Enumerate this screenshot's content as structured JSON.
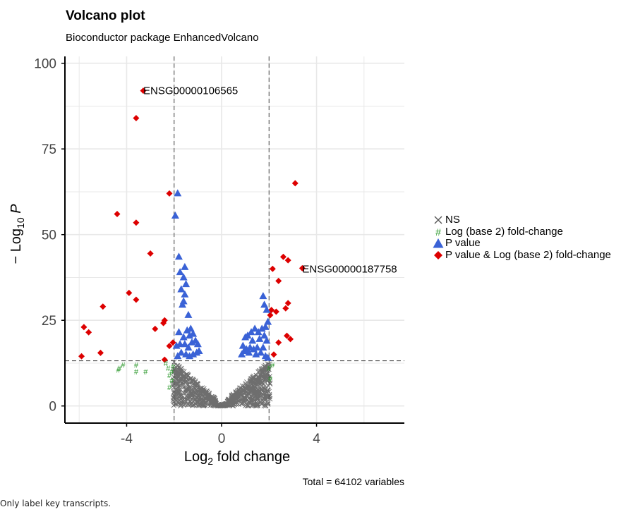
{
  "title": "Volcano plot",
  "subtitle": "Bioconductor package EnhancedVolcano",
  "caption": "Only label key transcripts.",
  "colors": {
    "ns": "#555555",
    "log2fc": "#2e9a2e",
    "pvalue": "#3a62d6",
    "both": "#dd0000",
    "grid": "#e8e8e8",
    "cutoff_line": "#555555"
  },
  "chart_data": {
    "type": "scatter",
    "xlabel_main": "Log",
    "xlabel_sub": "2",
    "xlabel_rest": " fold change",
    "ylabel_prefix": "− Log",
    "ylabel_sub": "10",
    "ylabel_suffix": " P",
    "xlim": [
      -6.6,
      7.7
    ],
    "ylim": [
      -5,
      102
    ],
    "x_ticks": [
      -4,
      0,
      4
    ],
    "x_tick_labels": [
      "-4",
      "0",
      "4"
    ],
    "y_ticks": [
      0,
      25,
      50,
      75,
      100
    ],
    "y_tick_labels": [
      "0",
      "25",
      "50",
      "75",
      "100"
    ],
    "grid": true,
    "fc_cutoffs": [
      -2,
      2
    ],
    "p_cutoff": 13.2,
    "legend_position": "right",
    "legend": [
      "NS",
      "Log (base 2) fold-change",
      "P value",
      "P value & Log (base 2) fold-change"
    ],
    "total_label": "Total = 64102 variables",
    "annotations": [
      {
        "text": "ENSG00000106565",
        "x": -3.3,
        "y": 92
      },
      {
        "text": "ENSG00000187758",
        "x": 3.4,
        "y": 40
      }
    ],
    "series": [
      {
        "name": "P value & Log (base 2) fold-change",
        "marker": "diamond",
        "points": [
          [
            -3.3,
            92
          ],
          [
            -3.6,
            84
          ],
          [
            -2.2,
            62
          ],
          [
            -4.4,
            56
          ],
          [
            -3.6,
            53.5
          ],
          [
            -3.0,
            44.5
          ],
          [
            -3.9,
            33
          ],
          [
            -3.6,
            31
          ],
          [
            -5.0,
            29
          ],
          [
            -2.4,
            25
          ],
          [
            -2.45,
            24.2
          ],
          [
            -5.8,
            23
          ],
          [
            -5.6,
            21.5
          ],
          [
            -2.8,
            22.5
          ],
          [
            -2.2,
            17.5
          ],
          [
            -2.05,
            18.5
          ],
          [
            -5.1,
            15.5
          ],
          [
            -5.9,
            14.5
          ],
          [
            -2.4,
            13.5
          ],
          [
            3.1,
            65
          ],
          [
            2.6,
            43.5
          ],
          [
            2.8,
            42.5
          ],
          [
            2.15,
            40
          ],
          [
            3.4,
            40.2
          ],
          [
            2.4,
            36.5
          ],
          [
            2.8,
            30
          ],
          [
            2.7,
            28.5
          ],
          [
            2.1,
            28
          ],
          [
            2.3,
            27.5
          ],
          [
            2.05,
            26.5
          ],
          [
            2.75,
            20.5
          ],
          [
            2.9,
            19.5
          ],
          [
            2.4,
            18.5
          ],
          [
            2.2,
            15
          ]
        ]
      },
      {
        "name": "P value",
        "marker": "triangle",
        "points": [
          [
            -1.85,
            62
          ],
          [
            -1.95,
            55.5
          ],
          [
            -1.8,
            43.5
          ],
          [
            -1.75,
            39
          ],
          [
            -1.55,
            40.5
          ],
          [
            -1.6,
            37.5
          ],
          [
            -1.5,
            35.5
          ],
          [
            -1.7,
            34
          ],
          [
            -1.6,
            30.5
          ],
          [
            -1.55,
            32.5
          ],
          [
            -1.65,
            29.5
          ],
          [
            -1.4,
            26.5
          ],
          [
            -1.3,
            22.5
          ],
          [
            -1.45,
            22
          ],
          [
            -1.2,
            21
          ],
          [
            -1.35,
            20.5
          ],
          [
            -1.6,
            20
          ],
          [
            -1.8,
            21.5
          ],
          [
            -1.75,
            18
          ],
          [
            -1.9,
            17.5
          ],
          [
            -1.55,
            18
          ],
          [
            -1.4,
            17
          ],
          [
            -1.25,
            18.5
          ],
          [
            -1.1,
            19
          ],
          [
            -1.0,
            18
          ],
          [
            -0.95,
            16
          ],
          [
            -1.05,
            15.5
          ],
          [
            -1.2,
            15
          ],
          [
            -1.35,
            14.5
          ],
          [
            -1.5,
            15
          ],
          [
            -1.7,
            15.5
          ],
          [
            -1.85,
            14.5
          ],
          [
            1.75,
            32
          ],
          [
            1.8,
            29.5
          ],
          [
            1.9,
            28
          ],
          [
            1.95,
            24.5
          ],
          [
            1.85,
            23
          ],
          [
            1.7,
            22.5
          ],
          [
            1.55,
            21.5
          ],
          [
            1.4,
            22.5
          ],
          [
            1.25,
            21.5
          ],
          [
            1.1,
            20.5
          ],
          [
            1.0,
            20
          ],
          [
            1.3,
            19
          ],
          [
            1.6,
            19.5
          ],
          [
            1.8,
            20.5
          ],
          [
            1.9,
            19
          ],
          [
            1.75,
            17
          ],
          [
            1.5,
            17
          ],
          [
            1.35,
            16.5
          ],
          [
            1.2,
            17
          ],
          [
            1.05,
            16.5
          ],
          [
            0.9,
            17.5
          ],
          [
            0.95,
            16
          ],
          [
            0.85,
            15
          ],
          [
            1.15,
            15.5
          ],
          [
            1.45,
            15
          ],
          [
            1.65,
            15.5
          ],
          [
            1.85,
            14.5
          ],
          [
            1.95,
            14
          ]
        ]
      },
      {
        "name": "Log (base 2) fold-change",
        "marker": "hash",
        "points": [
          [
            -4.35,
            10.5
          ],
          [
            -4.3,
            11
          ],
          [
            -4.15,
            12
          ],
          [
            -3.6,
            12
          ],
          [
            -3.6,
            10
          ],
          [
            -3.2,
            10
          ],
          [
            -2.35,
            12.5
          ],
          [
            -2.25,
            11
          ],
          [
            -2.2,
            9
          ],
          [
            -2.1,
            10
          ],
          [
            -2.05,
            11.5
          ],
          [
            -2.1,
            7.5
          ],
          [
            -2.2,
            5.5
          ],
          [
            2.05,
            8
          ],
          [
            2.15,
            12
          ],
          [
            2.0,
            11
          ]
        ]
      }
    ],
    "ns_count": 64102
  }
}
